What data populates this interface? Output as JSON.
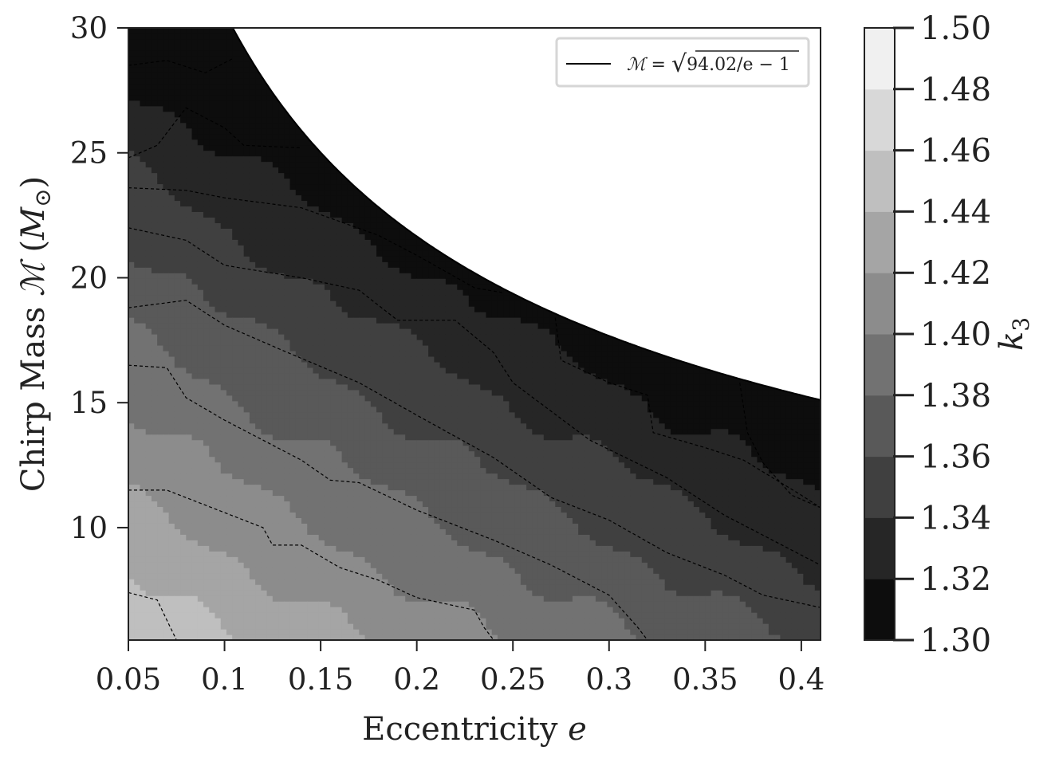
{
  "chart_data": {
    "type": "contour",
    "xlabel": "Eccentricity e",
    "ylabel": "Chirp Mass ℳ (M⊙)",
    "xlim": [
      0.05,
      0.41
    ],
    "ylim": [
      5.5,
      30
    ],
    "x_ticks": [
      0.05,
      0.1,
      0.15,
      0.2,
      0.25,
      0.3,
      0.35,
      0.4
    ],
    "x_tick_labels": [
      "0.05",
      "0.1",
      "0.15",
      "0.2",
      "0.25",
      "0.3",
      "0.35",
      "0.4"
    ],
    "y_ticks": [
      10,
      15,
      20,
      25,
      30
    ],
    "y_tick_labels": [
      "10",
      "15",
      "20",
      "25",
      "30"
    ],
    "colorbar": {
      "label": "k3",
      "label_main": "k",
      "label_sub": "3",
      "levels": [
        1.3,
        1.32,
        1.34,
        1.36,
        1.38,
        1.4,
        1.42,
        1.44,
        1.46,
        1.48,
        1.5
      ],
      "tick_labels": [
        "1.30",
        "1.32",
        "1.34",
        "1.36",
        "1.38",
        "1.40",
        "1.42",
        "1.44",
        "1.46",
        "1.48",
        "1.50"
      ],
      "colors": [
        "#0d0d0d",
        "#262626",
        "#404040",
        "#595959",
        "#727272",
        "#8c8c8c",
        "#a5a5a5",
        "#bfbfbf",
        "#d8d8d8",
        "#f0f0f0"
      ]
    },
    "boundary": {
      "label": "ℳ = √(94.02/e − 1)",
      "legend_lhs": "ℳ = ",
      "legend_rhs": "94.02/e − 1",
      "constant": 94.02,
      "color": "#000000"
    },
    "contour_lines": [
      {
        "level": 1.34,
        "points": [
          [
            0.05,
            28.5
          ],
          [
            0.07,
            28.7
          ],
          [
            0.09,
            28.2
          ],
          [
            0.105,
            28.8
          ]
        ]
      },
      {
        "level": 1.36,
        "points": [
          [
            0.05,
            24.8
          ],
          [
            0.065,
            25.3
          ],
          [
            0.08,
            26.8
          ],
          [
            0.1,
            26.0
          ],
          [
            0.11,
            25.3
          ],
          [
            0.14,
            25.2
          ]
        ]
      },
      {
        "level": 1.38,
        "points": [
          [
            0.05,
            23.6
          ],
          [
            0.08,
            23.5
          ],
          [
            0.1,
            23.2
          ],
          [
            0.14,
            22.8
          ],
          [
            0.18,
            21.7
          ],
          [
            0.2,
            20.9
          ],
          [
            0.23,
            19.6
          ],
          [
            0.245,
            19.4
          ]
        ]
      },
      {
        "level": 1.38,
        "points": [
          [
            0.272,
            18.4
          ],
          [
            0.275,
            16.7
          ],
          [
            0.3,
            15.8
          ],
          [
            0.32,
            15.3
          ],
          [
            0.323,
            13.8
          ],
          [
            0.35,
            13.2
          ],
          [
            0.37,
            12.7
          ],
          [
            0.4,
            11.3
          ],
          [
            0.41,
            10.8
          ]
        ]
      },
      {
        "level": 1.36,
        "points": [
          [
            0.368,
            15.8
          ],
          [
            0.372,
            13.8
          ],
          [
            0.38,
            12.6
          ],
          [
            0.395,
            11.3
          ],
          [
            0.41,
            10.8
          ]
        ]
      },
      {
        "level": 1.4,
        "points": [
          [
            0.05,
            22.0
          ],
          [
            0.08,
            21.5
          ],
          [
            0.1,
            20.5
          ],
          [
            0.14,
            20.0
          ],
          [
            0.17,
            19.5
          ],
          [
            0.19,
            18.3
          ],
          [
            0.22,
            18.3
          ],
          [
            0.24,
            17.0
          ],
          [
            0.25,
            15.8
          ],
          [
            0.29,
            13.5
          ],
          [
            0.33,
            12.0
          ],
          [
            0.36,
            10.5
          ],
          [
            0.385,
            9.5
          ],
          [
            0.41,
            8.5
          ]
        ]
      },
      {
        "level": 1.42,
        "points": [
          [
            0.05,
            18.8
          ],
          [
            0.08,
            19.1
          ],
          [
            0.1,
            18.1
          ],
          [
            0.13,
            17.1
          ],
          [
            0.17,
            15.8
          ],
          [
            0.2,
            14.5
          ],
          [
            0.24,
            12.8
          ],
          [
            0.27,
            11.2
          ],
          [
            0.3,
            10.3
          ],
          [
            0.33,
            9.0
          ],
          [
            0.36,
            8.1
          ],
          [
            0.38,
            7.3
          ],
          [
            0.41,
            6.8
          ]
        ]
      },
      {
        "level": 1.44,
        "points": [
          [
            0.05,
            16.5
          ],
          [
            0.07,
            16.4
          ],
          [
            0.08,
            15.2
          ],
          [
            0.1,
            14.3
          ],
          [
            0.14,
            12.7
          ],
          [
            0.155,
            11.9
          ],
          [
            0.17,
            11.8
          ],
          [
            0.2,
            10.7
          ],
          [
            0.24,
            9.5
          ],
          [
            0.27,
            8.5
          ],
          [
            0.3,
            7.3
          ],
          [
            0.315,
            6.0
          ],
          [
            0.32,
            5.5
          ]
        ]
      },
      {
        "level": 1.46,
        "points": [
          [
            0.05,
            11.5
          ],
          [
            0.07,
            11.5
          ],
          [
            0.1,
            10.6
          ],
          [
            0.12,
            10.0
          ],
          [
            0.125,
            9.3
          ],
          [
            0.14,
            9.3
          ],
          [
            0.16,
            8.4
          ],
          [
            0.18,
            7.9
          ],
          [
            0.2,
            7.2
          ],
          [
            0.23,
            6.7
          ],
          [
            0.235,
            6.0
          ],
          [
            0.24,
            5.5
          ]
        ]
      },
      {
        "level": 1.48,
        "points": [
          [
            0.05,
            7.4
          ],
          [
            0.065,
            7.1
          ],
          [
            0.07,
            6.3
          ],
          [
            0.075,
            5.5
          ]
        ]
      }
    ]
  }
}
